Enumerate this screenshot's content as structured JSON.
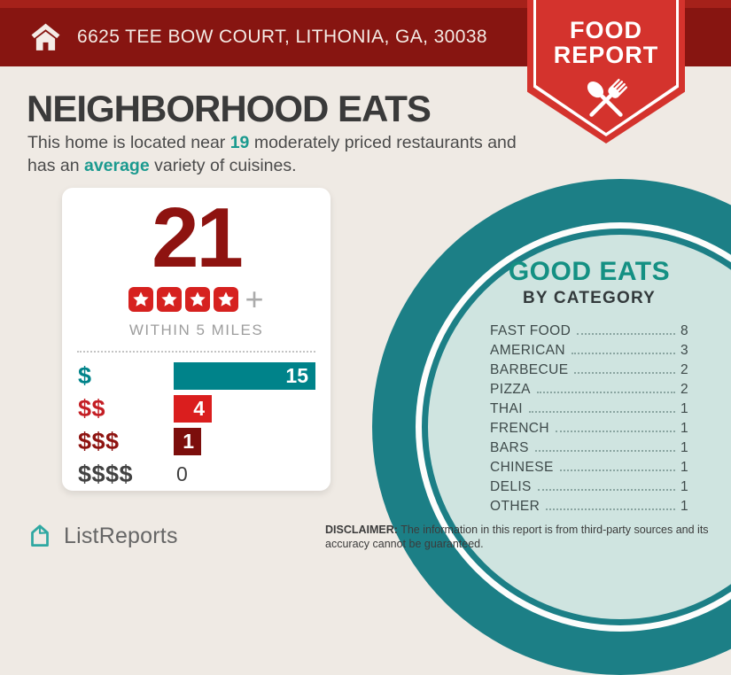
{
  "banner": {
    "address": "6625 TEE BOW COURT, LITHONIA, GA, 30038"
  },
  "badge": {
    "line1": "FOOD",
    "line2": "REPORT"
  },
  "main": {
    "headline": "NEIGHBORHOOD EATS",
    "subtitle": {
      "part1": "This home is located near ",
      "count": "19",
      "part2": " moderately priced restaurants and has an ",
      "highlight": "average",
      "part3": " variety of cuisines."
    }
  },
  "card": {
    "total": "21",
    "rating_stars": 4,
    "plus": "+",
    "caption": "WITHIN 5 MILES",
    "price_rows": [
      {
        "label": "$",
        "value": 15,
        "bar_color": "#00838a",
        "label_color": "#00838a"
      },
      {
        "label": "$$",
        "value": 4,
        "bar_color": "#da1e1e",
        "label_color": "#c41e24"
      },
      {
        "label": "$$$",
        "value": 1,
        "bar_color": "#7c0e0c",
        "label_color": "#8e1310"
      },
      {
        "label": "$$$$",
        "value": 0,
        "bar_color": null,
        "label_color": "#424242"
      }
    ]
  },
  "good_eats": {
    "title": "GOOD EATS",
    "subtitle": "BY CATEGORY",
    "rows": [
      {
        "label": "FAST FOOD",
        "value": 8
      },
      {
        "label": "AMERICAN",
        "value": 3
      },
      {
        "label": "BARBECUE",
        "value": 2
      },
      {
        "label": "PIZZA",
        "value": 2
      },
      {
        "label": "THAI",
        "value": 1
      },
      {
        "label": "FRENCH",
        "value": 1
      },
      {
        "label": "BARS",
        "value": 1
      },
      {
        "label": "CHINESE",
        "value": 1
      },
      {
        "label": "DELIS",
        "value": 1
      },
      {
        "label": "OTHER",
        "value": 1
      }
    ]
  },
  "footer": {
    "brand": "ListReports",
    "disclaimer_label": "DISCLAIMER:",
    "disclaimer_text": " The information in this report is from third-party sources and its accuracy cannot be guaranteed."
  },
  "colors": {
    "background": "#efeae4",
    "banner_red": "#871511",
    "banner_stripe_red": "#a5211a",
    "badge_red": "#d4332d",
    "dark_red": "#8e1310",
    "star_red": "#d6211f",
    "bar_teal": "#00838a",
    "bar_red": "#da1e1e",
    "bar_dark_red": "#7c0e0c",
    "accent_teal": "#1b9a8f",
    "circle_teal": "#1c7f86",
    "mint": "#cfe4e0",
    "good_eats_teal": "#149083"
  },
  "chart_data": [
    {
      "type": "bar",
      "orientation": "horizontal",
      "title": "21 WITHIN 5 MILES (4 stars +)",
      "categories": [
        "$",
        "$$",
        "$$$",
        "$$$$"
      ],
      "values": [
        15,
        4,
        1,
        0
      ],
      "bar_colors": [
        "#00838a",
        "#da1e1e",
        "#7c0e0c",
        null
      ],
      "xlim": [
        0,
        15
      ],
      "grid": false,
      "value_labels": "inside-end"
    },
    {
      "type": "table",
      "title": "GOOD EATS BY CATEGORY",
      "categories": [
        "FAST FOOD",
        "AMERICAN",
        "BARBECUE",
        "PIZZA",
        "THAI",
        "FRENCH",
        "BARS",
        "CHINESE",
        "DELIS",
        "OTHER"
      ],
      "values": [
        8,
        3,
        2,
        2,
        1,
        1,
        1,
        1,
        1,
        1
      ]
    }
  ]
}
